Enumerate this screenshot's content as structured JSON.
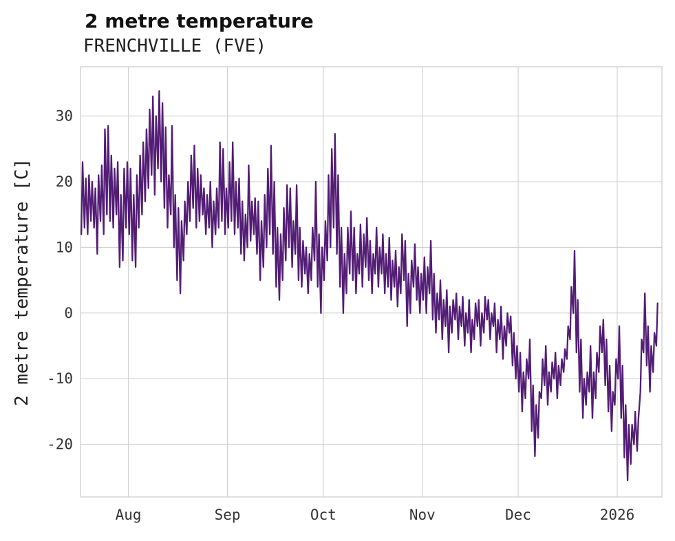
{
  "chart_data": {
    "type": "line",
    "title": "2 metre temperature",
    "subtitle": "FRENCHVILLE (FVE)",
    "ylabel": "2 metre temperature [C]",
    "xlabel": "",
    "legend": "none",
    "grid": true,
    "grid_color": "#cccccc",
    "line_color": "#531d76",
    "text_color": "#333333",
    "ylim": [
      -28,
      37.5
    ],
    "y_ticks": [
      -20,
      -10,
      0,
      10,
      20,
      30
    ],
    "x_range_days": [
      0,
      182
    ],
    "x_tick_days": [
      15,
      46,
      76,
      107,
      137,
      168
    ],
    "x_tick_labels": [
      "Aug",
      "Sep",
      "Oct",
      "Nov",
      "Dec",
      "2026"
    ],
    "series_name": "2 metre temperature",
    "daily_min_max": [
      [
        12,
        23
      ],
      [
        13,
        20.5
      ],
      [
        12,
        21
      ],
      [
        14,
        20
      ],
      [
        13,
        19
      ],
      [
        9,
        21
      ],
      [
        14,
        22.5
      ],
      [
        12,
        28
      ],
      [
        15,
        28.5
      ],
      [
        14,
        24
      ],
      [
        13,
        22
      ],
      [
        15,
        23
      ],
      [
        7,
        18
      ],
      [
        8,
        22
      ],
      [
        13,
        23
      ],
      [
        12,
        22
      ],
      [
        8,
        18
      ],
      [
        7,
        21
      ],
      [
        13,
        24
      ],
      [
        15,
        26
      ],
      [
        17,
        28
      ],
      [
        19,
        31
      ],
      [
        21,
        33
      ],
      [
        18,
        30
      ],
      [
        22,
        33.8
      ],
      [
        20,
        32
      ],
      [
        16,
        28.3
      ],
      [
        13,
        21
      ],
      [
        15,
        28.5
      ],
      [
        10,
        18
      ],
      [
        5,
        16
      ],
      [
        3,
        14
      ],
      [
        8,
        17
      ],
      [
        12,
        20
      ],
      [
        14,
        24
      ],
      [
        16,
        25.5
      ],
      [
        13,
        22
      ],
      [
        14,
        21
      ],
      [
        15,
        19
      ],
      [
        12,
        18
      ],
      [
        13,
        20
      ],
      [
        10,
        17
      ],
      [
        12,
        19
      ],
      [
        13,
        26
      ],
      [
        14,
        25
      ],
      [
        12,
        19
      ],
      [
        13,
        23
      ],
      [
        14,
        26
      ],
      [
        12,
        20
      ],
      [
        13,
        20.5
      ],
      [
        9,
        17
      ],
      [
        8,
        15
      ],
      [
        10,
        22.5
      ],
      [
        11,
        17
      ],
      [
        12,
        17.5
      ],
      [
        9,
        17
      ],
      [
        5,
        14
      ],
      [
        7,
        18
      ],
      [
        10,
        22
      ],
      [
        12,
        25.5
      ],
      [
        9,
        20
      ],
      [
        4,
        13
      ],
      [
        2,
        12
      ],
      [
        5,
        16
      ],
      [
        8,
        19.5
      ],
      [
        10,
        19
      ],
      [
        7,
        14
      ],
      [
        9,
        19.5
      ],
      [
        5,
        13
      ],
      [
        4,
        11
      ],
      [
        6,
        10
      ],
      [
        3,
        9
      ],
      [
        5,
        13
      ],
      [
        8,
        20
      ],
      [
        4,
        12
      ],
      [
        0,
        10
      ],
      [
        5,
        14
      ],
      [
        8,
        21
      ],
      [
        10,
        25
      ],
      [
        13,
        27.3
      ],
      [
        9,
        21
      ],
      [
        4,
        13
      ],
      [
        0,
        9
      ],
      [
        3,
        13
      ],
      [
        6,
        15.5
      ],
      [
        5,
        13
      ],
      [
        3,
        9
      ],
      [
        6,
        13.5
      ],
      [
        4,
        12
      ],
      [
        7,
        14.5
      ],
      [
        5,
        11
      ],
      [
        3,
        9
      ],
      [
        6,
        13
      ],
      [
        4,
        10
      ],
      [
        6,
        12
      ],
      [
        3,
        9
      ],
      [
        4,
        11.5
      ],
      [
        2,
        8
      ],
      [
        4,
        9.5
      ],
      [
        1,
        7
      ],
      [
        3,
        12
      ],
      [
        5,
        11
      ],
      [
        -2,
        6
      ],
      [
        0,
        8
      ],
      [
        4,
        10.5
      ],
      [
        2,
        7
      ],
      [
        0,
        6
      ],
      [
        2,
        8.5
      ],
      [
        0,
        7
      ],
      [
        3,
        11
      ],
      [
        -1,
        6
      ],
      [
        -3,
        3
      ],
      [
        -1,
        5
      ],
      [
        -4,
        2
      ],
      [
        -2,
        3.5
      ],
      [
        -6,
        1
      ],
      [
        -3,
        2
      ],
      [
        -1,
        3
      ],
      [
        -4,
        1
      ],
      [
        -2,
        2.5
      ],
      [
        -5,
        0
      ],
      [
        -3,
        2
      ],
      [
        -6,
        -1
      ],
      [
        -4,
        1.5
      ],
      [
        -2,
        2
      ],
      [
        -5,
        0
      ],
      [
        -3,
        2.5
      ],
      [
        -1,
        2
      ],
      [
        -4,
        0
      ],
      [
        -2,
        1.5
      ],
      [
        -6,
        -1
      ],
      [
        -4,
        1
      ],
      [
        -7,
        -2
      ],
      [
        -5,
        0
      ],
      [
        -3,
        -0.5
      ],
      [
        -8,
        -3
      ],
      [
        -10,
        -5
      ],
      [
        -12,
        -6
      ],
      [
        -15,
        -9
      ],
      [
        -13,
        -7
      ],
      [
        -10,
        -4
      ],
      [
        -18,
        -11
      ],
      [
        -21.8,
        -14
      ],
      [
        -19,
        -12
      ],
      [
        -13,
        -7
      ],
      [
        -11,
        -5
      ],
      [
        -14,
        -9
      ],
      [
        -12,
        -7.5
      ],
      [
        -10,
        -6
      ],
      [
        -13,
        -8
      ],
      [
        -11,
        -7
      ],
      [
        -9,
        -5.5
      ],
      [
        -7,
        -2
      ],
      [
        -4,
        4
      ],
      [
        0,
        9.5
      ],
      [
        -6,
        2
      ],
      [
        -12,
        -4
      ],
      [
        -16,
        -10
      ],
      [
        -14,
        -9
      ],
      [
        -12,
        -5
      ],
      [
        -16,
        -9
      ],
      [
        -13,
        -6
      ],
      [
        -9,
        -2
      ],
      [
        -6,
        -1
      ],
      [
        -11,
        -4
      ],
      [
        -15,
        -8
      ],
      [
        -18,
        -12
      ],
      [
        -14,
        -7
      ],
      [
        -10,
        -2
      ],
      [
        -16,
        -8
      ],
      [
        -22,
        -14
      ],
      [
        -25.5,
        -17
      ],
      [
        -23,
        -17
      ],
      [
        -20,
        -15
      ],
      [
        -21,
        -16
      ],
      [
        -12,
        -4
      ],
      [
        -6,
        3
      ],
      [
        -8,
        -2
      ],
      [
        -12,
        -5
      ],
      [
        -9,
        -3
      ],
      [
        -5,
        1.5
      ]
    ]
  }
}
